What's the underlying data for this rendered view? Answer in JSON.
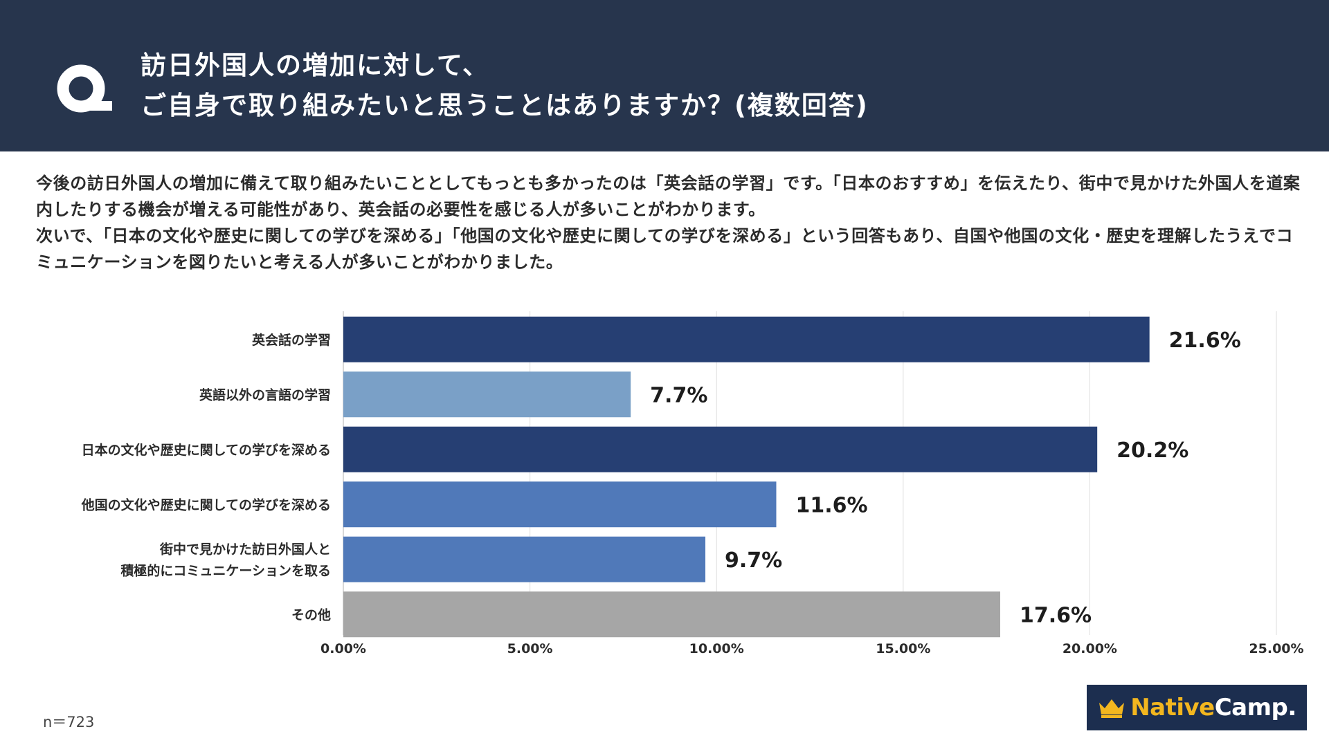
{
  "header": {
    "question_line1": "訪日外国人の増加に対して、",
    "question_line2": "ご自身で取り組みたいと思うことはありますか？(複数回答)",
    "icon": "q-icon",
    "background_color": "#27354d"
  },
  "description": {
    "paragraph1": "今後の訪日外国人の増加に備えて取り組みたいこととしてもっとも多かったのは「英会話の学習」です。「日本のおすすめ」を伝えたり、街中で見かけた外国人を道案内したりする機会が増える可能性があり、英会話の必要性を感じる人が多いことがわかります。",
    "paragraph2": "次いで、「日本の文化や歴史に関しての学びを深める」「他国の文化や歴史に関しての学びを深める」という回答もあり、自国や他国の文化・歴史を理解したうえでコミュニケーションを図りたいと考える人が多いことがわかりました。"
  },
  "chart_data": {
    "type": "bar",
    "orientation": "horizontal",
    "categories": [
      "英会話の学習",
      "英語以外の言語の学習",
      "日本の文化や歴史に関しての学びを深める",
      "他国の文化や歴史に関しての学びを深める",
      "街中で見かけた訪日外国人と\n積極的にコミュニケーションを取る",
      "その他"
    ],
    "values": [
      21.6,
      7.7,
      20.2,
      11.6,
      9.7,
      17.6
    ],
    "value_labels": [
      "21.6%",
      "7.7%",
      "20.2%",
      "11.6%",
      "9.7%",
      "17.6%"
    ],
    "colors": [
      "#263f73",
      "#7aa0c7",
      "#263f73",
      "#5079b9",
      "#5079b9",
      "#a6a6a6"
    ],
    "xlim": [
      0,
      25
    ],
    "xticks": [
      0,
      5,
      10,
      15,
      20,
      25
    ],
    "xtick_labels": [
      "0.00%",
      "5.00%",
      "10.00%",
      "15.00%",
      "20.00%",
      "25.00%"
    ],
    "grid": true,
    "title": "",
    "xlabel": "",
    "ylabel": ""
  },
  "footer": {
    "sample_size": "n＝723",
    "logo_part1": "Native",
    "logo_part2": "Camp.",
    "logo_icon": "crown-icon",
    "logo_accent": "#f2b61f",
    "logo_background": "#1c2e4f"
  }
}
